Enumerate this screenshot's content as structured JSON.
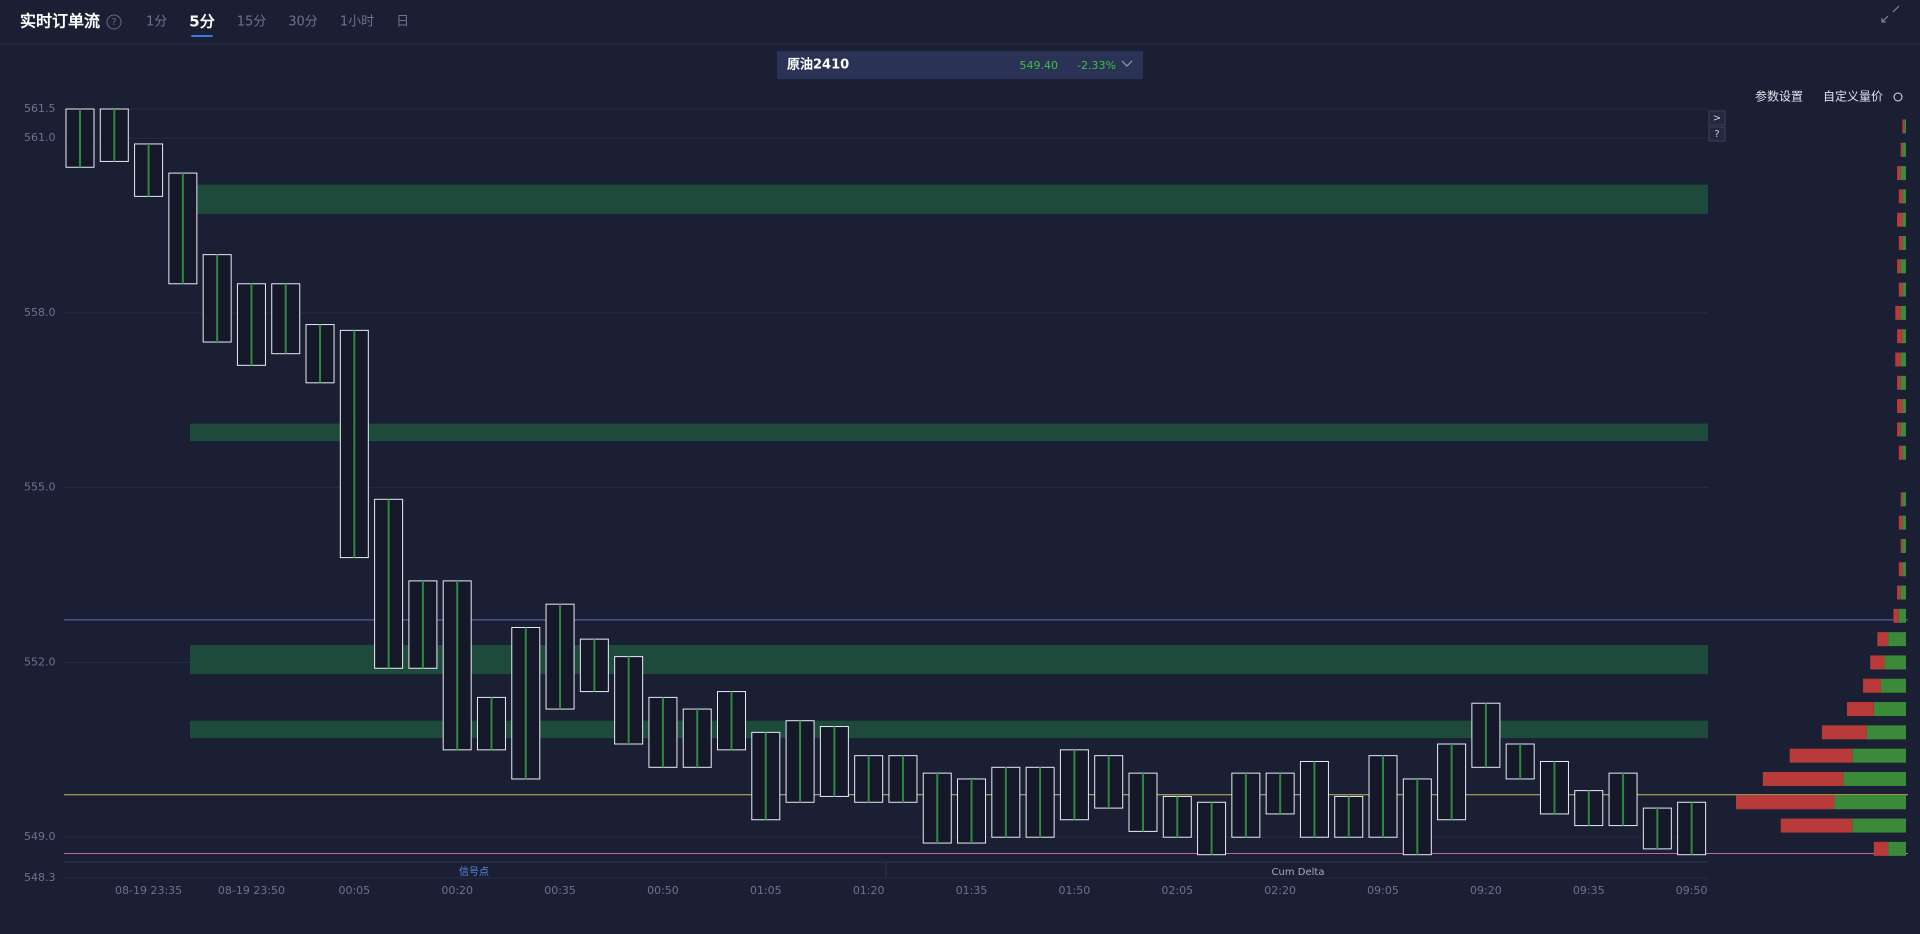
{
  "header": {
    "title": "实时订单流",
    "help": "?",
    "tabs": [
      "1分",
      "5分",
      "15分",
      "30分",
      "1小时",
      "日"
    ],
    "active_tab": 1
  },
  "symbol": {
    "name": "原油2410",
    "price": "549.40",
    "change": "-2.33%"
  },
  "toolbar": {
    "settings": "参数设置",
    "custom": "自定义量价"
  },
  "side_buttons": [
    ">",
    "?"
  ],
  "chart_data": {
    "type": "footprint",
    "categories": [
      null,
      null,
      "08-19 23:35",
      null,
      null,
      "08-19 23:50",
      null,
      null,
      "00:05",
      null,
      null,
      "00:20",
      null,
      null,
      "00:35",
      null,
      null,
      "00:50",
      null,
      null,
      "01:05",
      null,
      null,
      "01:20",
      null,
      null,
      "01:35",
      null,
      null,
      "01:50",
      null,
      null,
      "02:05",
      null,
      null,
      "02:20",
      null,
      null,
      "09:05",
      null,
      null,
      "09:20",
      null,
      null,
      "09:35",
      null,
      null,
      "09:50"
    ],
    "high": [
      561.5,
      561.5,
      560.9,
      560.4,
      559.0,
      558.5,
      558.5,
      557.8,
      557.7,
      554.8,
      553.4,
      553.4,
      551.4,
      552.6,
      553.0,
      552.4,
      552.1,
      551.4,
      551.2,
      551.5,
      550.8,
      551.0,
      550.9,
      550.4,
      550.4,
      550.1,
      550.0,
      550.2,
      550.2,
      550.5,
      550.4,
      550.1,
      549.7,
      549.6,
      550.1,
      550.1,
      550.3,
      549.7,
      550.4,
      550.0,
      550.6,
      551.3,
      550.6,
      550.3,
      549.8,
      550.1,
      549.5,
      549.6
    ],
    "low": [
      560.5,
      560.6,
      560.0,
      558.5,
      557.5,
      557.1,
      557.3,
      556.8,
      553.8,
      551.9,
      551.9,
      550.5,
      550.5,
      550.0,
      551.2,
      551.5,
      550.6,
      550.2,
      550.2,
      550.5,
      549.3,
      549.6,
      549.7,
      549.6,
      549.6,
      548.9,
      548.9,
      549.0,
      549.0,
      549.3,
      549.5,
      549.1,
      549.0,
      548.7,
      549.0,
      549.4,
      549.0,
      549.0,
      549.0,
      548.7,
      549.3,
      550.2,
      550.0,
      549.4,
      549.2,
      549.2,
      548.8,
      548.7
    ],
    "ylim": [
      548.3,
      561.5
    ],
    "yticks": [
      548.3,
      {
        "value": 549,
        "label": "549.0"
      },
      {
        "value": 552,
        "label": "552.0"
      },
      {
        "value": 555,
        "label": "555.0"
      },
      {
        "value": 558,
        "label": "558.0"
      },
      {
        "value": 561,
        "label": "561.0"
      },
      561.5
    ],
    "grid": true,
    "zones": [
      [
        559.7,
        560.2
      ],
      [
        555.8,
        556.1
      ],
      [
        551.8,
        552.3
      ],
      [
        550.7,
        551.0
      ]
    ],
    "zone_color": "#1d4a3a",
    "levels": [
      {
        "value": 552.73,
        "color": "#5a6fc0"
      },
      {
        "value": 549.73,
        "color": "#c9b85a"
      },
      {
        "value": 548.72,
        "color": "#c060b0"
      }
    ],
    "candle_color": "#e8ecf5",
    "bottom_labels": [
      "信号点",
      "Cum Delta"
    ],
    "profile": {
      "prices": [
        548.8,
        549.2,
        549.6,
        550.0,
        550.4,
        550.8,
        551.2,
        551.6,
        552.0,
        552.4,
        552.8,
        553.2,
        553.6,
        554.0,
        554.4,
        554.8,
        555.2,
        555.6,
        556.0,
        556.4,
        556.8,
        557.2,
        557.6,
        558.0,
        558.4,
        558.8,
        559.2,
        559.6,
        560.0,
        560.4,
        560.8,
        561.2
      ],
      "series": [
        {
          "name": "buy",
          "color": "#3a8a3a",
          "values": [
            10,
            30,
            40,
            35,
            30,
            22,
            18,
            14,
            12,
            10,
            4,
            3,
            2,
            2,
            2,
            2,
            0,
            2,
            3,
            2,
            3,
            3,
            2,
            3,
            2,
            3,
            2,
            2,
            2,
            3,
            2,
            1
          ]
        },
        {
          "name": "sell",
          "color": "#b83a3a",
          "values": [
            8,
            40,
            55,
            45,
            35,
            25,
            15,
            10,
            8,
            6,
            3,
            2,
            2,
            1,
            2,
            1,
            0,
            2,
            2,
            3,
            2,
            3,
            3,
            3,
            2,
            2,
            2,
            3,
            2,
            2,
            1,
            1
          ]
        }
      ]
    }
  }
}
